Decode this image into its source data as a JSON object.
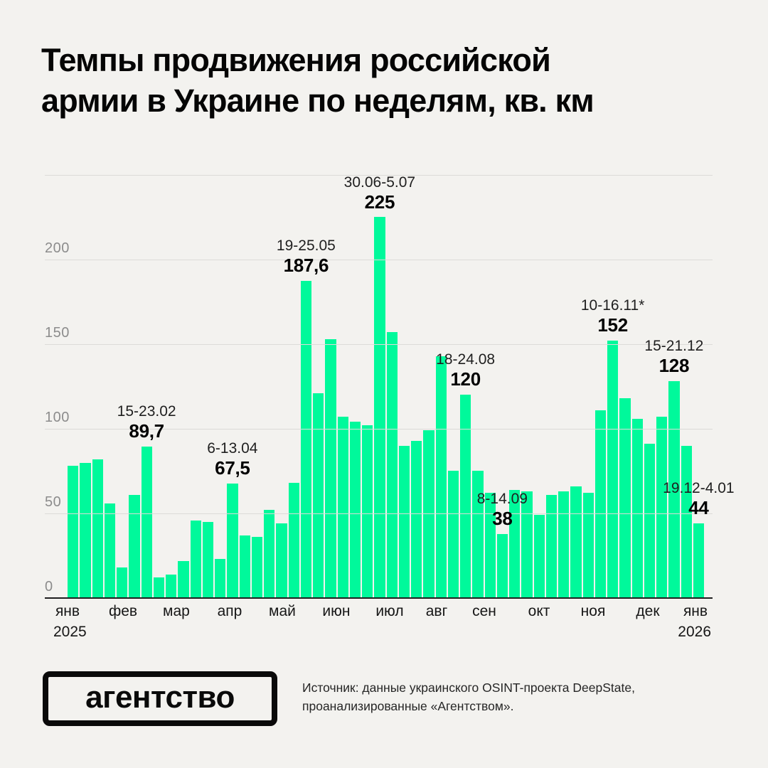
{
  "title": {
    "line1": "Темпы продвижения российской",
    "line2": "армии в Украине по неделям, кв. км"
  },
  "chart_data": {
    "type": "bar",
    "title": "Темпы продвижения российской армии в Украине по неделям, кв. км",
    "unit": "кв. км",
    "bar_color": "#00f99b",
    "grid": true,
    "y_ticks": [
      0,
      50,
      100,
      150,
      200
    ],
    "ylim": [
      0,
      250
    ],
    "categories_months": [
      "янв",
      "фев",
      "мар",
      "апр",
      "май",
      "июн",
      "июл",
      "авг",
      "сен",
      "окт",
      "ноя",
      "дек",
      "янв"
    ],
    "year_start": "2025",
    "year_end": "2026",
    "values": [
      78,
      80,
      82,
      56,
      18,
      61,
      89.7,
      12,
      14,
      22,
      46,
      45,
      23,
      67.5,
      37,
      36,
      52,
      44,
      68,
      187.6,
      121,
      153,
      107,
      104,
      102,
      225,
      157,
      90,
      93,
      99,
      143,
      75,
      120,
      75,
      62,
      38,
      64,
      63,
      49,
      61,
      63,
      66,
      62,
      111,
      152,
      118,
      106,
      91,
      107,
      128,
      90,
      44
    ],
    "annotations": [
      {
        "index": 6,
        "date": "15-23.02",
        "value": "89,7"
      },
      {
        "index": 13,
        "date": "6-13.04",
        "value": "67,5"
      },
      {
        "index": 19,
        "date": "19-25.05",
        "value": "187,6"
      },
      {
        "index": 25,
        "date": "30.06-5.07",
        "value": "225"
      },
      {
        "index": 32,
        "date": "18-24.08",
        "value": "120"
      },
      {
        "index": 35,
        "date": "8-14.09",
        "value": "38"
      },
      {
        "index": 44,
        "date": "10-16.11*",
        "value": "152"
      },
      {
        "index": 49,
        "date": "15-21.12",
        "value": "128"
      },
      {
        "index": 51,
        "date": "19.12-4.01",
        "value": "44"
      }
    ]
  },
  "footer": {
    "logo": "агентство",
    "source_line1": "Источник: данные украинского OSINT-проекта DeepState,",
    "source_line2": "проанализированные «Агентством»."
  }
}
